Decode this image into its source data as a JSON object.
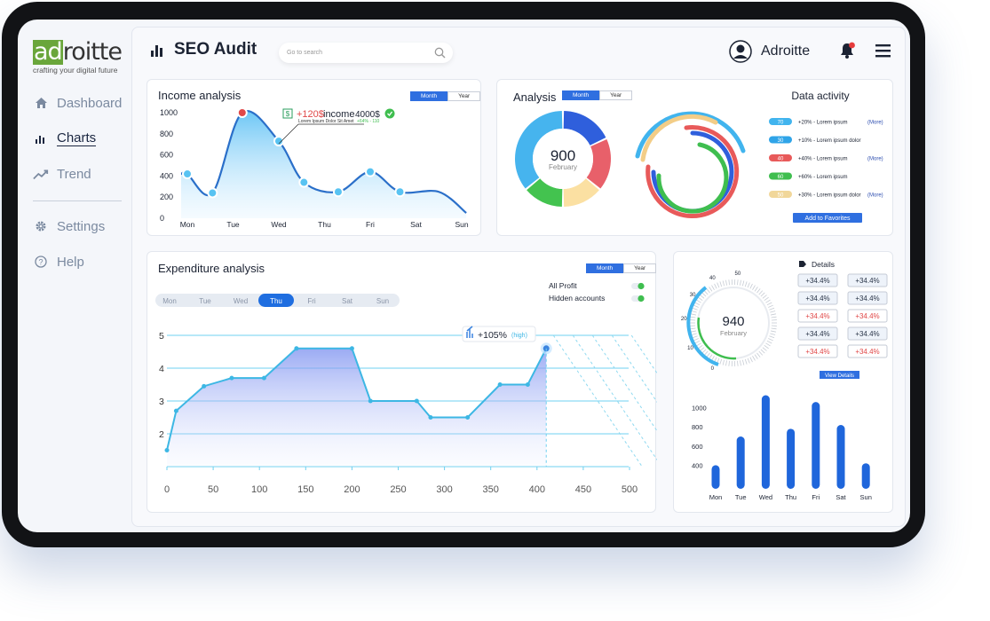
{
  "logo": {
    "part_a": "ad",
    "part_b": "roitte",
    "tagline": "crafting your digital future"
  },
  "sidebar": {
    "items": [
      {
        "label": "Dashboard",
        "icon": "home-icon"
      },
      {
        "label": "Charts",
        "icon": "bar-chart-icon"
      },
      {
        "label": "Trend",
        "icon": "trend-icon"
      },
      {
        "label": "Settings",
        "icon": "gear-icon"
      },
      {
        "label": "Help",
        "icon": "help-icon"
      }
    ]
  },
  "header": {
    "title": "SEO Audit",
    "search_placeholder": "Go to search",
    "user_name": "Adroitte"
  },
  "income": {
    "title": "Income analysis",
    "toggle": [
      "Month",
      "Year"
    ],
    "callout_amount": "+120$",
    "callout_label": "income",
    "callout_total": "4000$",
    "callout_sub": "Lorem Ipsum Dolor Sit Amet",
    "callout_delta": "+64% - 110"
  },
  "analysis": {
    "title": "Analysis",
    "toggle": [
      "Month",
      "Year"
    ],
    "center_value": "900",
    "center_label": "February"
  },
  "data_activity": {
    "title": "Data activity",
    "rows": [
      {
        "value": "70",
        "text": "+20% - Lorem ipsum",
        "more": "(More)",
        "color": "#41b4ee"
      },
      {
        "value": "30",
        "text": "+10% - Lorem ipsum dolor",
        "more": "",
        "color": "#2fa4e8"
      },
      {
        "value": "40",
        "text": "+40% - Lorem ipsum",
        "more": "(More)",
        "color": "#e85a5a"
      },
      {
        "value": "60",
        "text": "+60% - Lorem ipsum",
        "more": "",
        "color": "#3fbe4f"
      },
      {
        "value": "50",
        "text": "+30% - Lorem ipsum dolor",
        "more": "(More)",
        "color": "#f1d79a"
      }
    ],
    "button": "Add to Favorites"
  },
  "expenditure": {
    "title": "Expenditure analysis",
    "toggle": [
      "Month",
      "Year"
    ],
    "legend": [
      "All Profit",
      "Hidden accounts"
    ],
    "days": [
      "Mon",
      "Tue",
      "Wed",
      "Thu",
      "Fri",
      "Sat",
      "Sun"
    ],
    "active_day": "Thu",
    "callout": "+105%",
    "callout_tag": "(high)"
  },
  "details": {
    "title": "Details",
    "gauge_value": "940",
    "gauge_label": "February",
    "gauge_ticks": [
      "0",
      "10",
      "20",
      "30",
      "40",
      "50"
    ],
    "badges": [
      [
        "+34.4%",
        "+34.4%"
      ],
      [
        "+34.4%",
        "+34.4%"
      ],
      [
        "+34.4%",
        "+34.4%"
      ],
      [
        "+34.4%",
        "+34.4%"
      ],
      [
        "+34.4%",
        "+34.4%"
      ]
    ],
    "button": "View Details"
  },
  "colors": {
    "accent": "#2f6fe0",
    "line_blue": "#2f78d8",
    "red": "#e04848",
    "green": "#3fbe4f"
  },
  "chart_data": [
    {
      "type": "area",
      "title": "Income analysis",
      "categories": [
        "Mon",
        "Tue",
        "Wed",
        "Thu",
        "Fri",
        "Sat",
        "Sun"
      ],
      "points": [
        [
          0,
          420
        ],
        [
          0.55,
          240
        ],
        [
          1.2,
          1000
        ],
        [
          2.0,
          730
        ],
        [
          2.55,
          340
        ],
        [
          3.3,
          250
        ],
        [
          4.0,
          440
        ],
        [
          4.65,
          250
        ],
        [
          5.5,
          250
        ],
        [
          6.1,
          50
        ]
      ],
      "ylim": [
        0,
        1000
      ],
      "yticks": [
        0,
        200,
        400,
        600,
        800,
        1000
      ]
    },
    {
      "type": "pie",
      "title": "Analysis",
      "values": [
        18,
        18,
        14,
        14,
        36
      ],
      "colors": [
        "#2f5fdc",
        "#e8606a",
        "#fbe0a2",
        "#43c34f",
        "#46b4ee"
      ]
    },
    {
      "type": "line",
      "title": "Expenditure analysis",
      "x": [
        0,
        10,
        40,
        70,
        105,
        140,
        200,
        220,
        270,
        285,
        325,
        360,
        390,
        410
      ],
      "y": [
        1.5,
        2.7,
        3.45,
        3.7,
        3.7,
        4.6,
        4.6,
        3.0,
        3.0,
        2.5,
        2.5,
        3.5,
        3.5,
        4.6
      ],
      "xticks": [
        0,
        50,
        100,
        150,
        200,
        250,
        300,
        350,
        400,
        450,
        500
      ],
      "yticks": [
        2,
        3,
        4,
        5
      ],
      "xlim": [
        0,
        500
      ],
      "ylim": [
        1,
        5
      ]
    },
    {
      "type": "bar",
      "categories": [
        "Mon",
        "Tue",
        "Wed",
        "Thu",
        "Fri",
        "Sat",
        "Sun"
      ],
      "values": [
        400,
        700,
        1130,
        780,
        1060,
        820,
        420
      ],
      "yticks": [
        400,
        600,
        800,
        1000
      ],
      "ylim": [
        200,
        1100
      ]
    }
  ]
}
